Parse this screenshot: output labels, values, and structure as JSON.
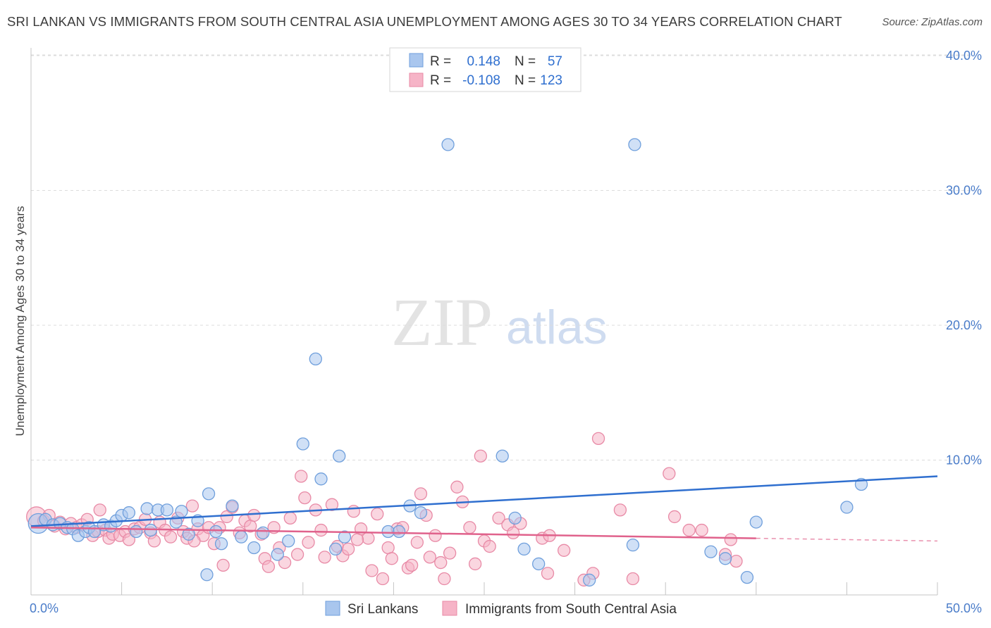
{
  "title": "SRI LANKAN VS IMMIGRANTS FROM SOUTH CENTRAL ASIA UNEMPLOYMENT AMONG AGES 30 TO 34 YEARS CORRELATION CHART",
  "source": "Source: ZipAtlas.com",
  "watermark": {
    "zip": "ZIP",
    "atlas": "atlas"
  },
  "colors": {
    "blue_fill": "#a9c6ee",
    "blue_stroke": "#6f9fdc",
    "blue_line": "#2f6fcf",
    "pink_fill": "#f6b4c7",
    "pink_stroke": "#e88aa6",
    "pink_line": "#e0628c",
    "axis_text": "#4a7cc9",
    "grid": "#dcdcdc"
  },
  "legend_top": {
    "rows": [
      {
        "r_label": "R =",
        "r_value": "0.148",
        "n_label": "N =",
        "n_value": "57",
        "series": "blue"
      },
      {
        "r_label": "R =",
        "r_value": "-0.108",
        "n_label": "N =",
        "n_value": "123",
        "series": "pink"
      }
    ]
  },
  "legend_bottom": [
    {
      "label": "Sri Lankans",
      "series": "blue"
    },
    {
      "label": "Immigrants from South Central Asia",
      "series": "pink"
    }
  ],
  "chart_data": {
    "type": "scatter",
    "title": "SRI LANKAN VS IMMIGRANTS FROM SOUTH CENTRAL ASIA UNEMPLOYMENT AMONG AGES 30 TO 34 YEARS CORRELATION CHART",
    "xlabel": "",
    "ylabel": "Unemployment Among Ages 30 to 34 years",
    "xlim": [
      0,
      50
    ],
    "ylim": [
      0,
      42
    ],
    "x_tick_labels": [
      {
        "value": 0,
        "label": "0.0%"
      },
      {
        "value": 50,
        "label": "50.0%"
      }
    ],
    "y_tick_labels": [
      {
        "value": 10,
        "label": "10.0%"
      },
      {
        "value": 20,
        "label": "20.0%"
      },
      {
        "value": 30,
        "label": "30.0%"
      },
      {
        "value": 40,
        "label": "40.0%"
      }
    ],
    "x_minor_ticks": [
      5,
      10,
      15,
      20,
      25,
      30,
      35,
      40,
      45,
      50
    ],
    "series": [
      {
        "name": "Sri Lankans",
        "color": "blue",
        "r": 0.148,
        "n": 57,
        "trend": {
          "x": [
            0,
            50
          ],
          "y": [
            5.1,
            8.8
          ],
          "dashed_from": null
        },
        "points": [
          {
            "x": 0.4,
            "y": 5.3,
            "size": "big"
          },
          {
            "x": 0.8,
            "y": 5.6
          },
          {
            "x": 1.2,
            "y": 5.2
          },
          {
            "x": 1.6,
            "y": 5.3
          },
          {
            "x": 2.0,
            "y": 5.0
          },
          {
            "x": 2.3,
            "y": 4.9
          },
          {
            "x": 2.6,
            "y": 4.4
          },
          {
            "x": 3.0,
            "y": 4.7
          },
          {
            "x": 3.2,
            "y": 5.0
          },
          {
            "x": 3.5,
            "y": 4.7
          },
          {
            "x": 4.0,
            "y": 5.2
          },
          {
            "x": 4.4,
            "y": 5.1
          },
          {
            "x": 4.7,
            "y": 5.5
          },
          {
            "x": 5.0,
            "y": 5.9
          },
          {
            "x": 5.4,
            "y": 6.1
          },
          {
            "x": 5.8,
            "y": 4.7
          },
          {
            "x": 6.4,
            "y": 6.4
          },
          {
            "x": 6.6,
            "y": 4.8
          },
          {
            "x": 7.0,
            "y": 6.3
          },
          {
            "x": 7.5,
            "y": 6.3
          },
          {
            "x": 8.0,
            "y": 5.4
          },
          {
            "x": 8.3,
            "y": 6.2
          },
          {
            "x": 8.7,
            "y": 4.5
          },
          {
            "x": 9.2,
            "y": 5.5
          },
          {
            "x": 9.7,
            "y": 1.5
          },
          {
            "x": 9.8,
            "y": 7.5
          },
          {
            "x": 10.2,
            "y": 4.7
          },
          {
            "x": 10.5,
            "y": 3.8
          },
          {
            "x": 11.1,
            "y": 6.6
          },
          {
            "x": 11.6,
            "y": 4.3
          },
          {
            "x": 12.3,
            "y": 3.5
          },
          {
            "x": 12.8,
            "y": 4.6
          },
          {
            "x": 13.6,
            "y": 3.0
          },
          {
            "x": 14.2,
            "y": 4.0
          },
          {
            "x": 15.0,
            "y": 11.2
          },
          {
            "x": 15.7,
            "y": 17.5
          },
          {
            "x": 16.0,
            "y": 8.6
          },
          {
            "x": 16.8,
            "y": 3.4
          },
          {
            "x": 17.0,
            "y": 10.3
          },
          {
            "x": 17.3,
            "y": 4.3
          },
          {
            "x": 19.7,
            "y": 4.7
          },
          {
            "x": 20.3,
            "y": 4.7
          },
          {
            "x": 20.9,
            "y": 6.6
          },
          {
            "x": 21.5,
            "y": 6.1
          },
          {
            "x": 23.0,
            "y": 33.4
          },
          {
            "x": 26.0,
            "y": 10.3
          },
          {
            "x": 26.7,
            "y": 5.7
          },
          {
            "x": 27.2,
            "y": 3.4
          },
          {
            "x": 28.0,
            "y": 2.3
          },
          {
            "x": 30.8,
            "y": 1.1
          },
          {
            "x": 33.3,
            "y": 33.4
          },
          {
            "x": 33.2,
            "y": 3.7
          },
          {
            "x": 37.5,
            "y": 3.2
          },
          {
            "x": 38.3,
            "y": 2.7
          },
          {
            "x": 39.5,
            "y": 1.3
          },
          {
            "x": 40.0,
            "y": 5.4
          },
          {
            "x": 45.0,
            "y": 6.5
          },
          {
            "x": 45.8,
            "y": 8.2
          }
        ]
      },
      {
        "name": "Immigrants from South Central Asia",
        "color": "pink",
        "r": -0.108,
        "n": 123,
        "trend": {
          "x": [
            0,
            50
          ],
          "y": [
            5.0,
            4.0
          ],
          "dashed_from": 40.0
        },
        "points": [
          {
            "x": 0.3,
            "y": 5.8,
            "size": "big"
          },
          {
            "x": 0.7,
            "y": 5.5
          },
          {
            "x": 1.0,
            "y": 5.9
          },
          {
            "x": 1.3,
            "y": 5.1
          },
          {
            "x": 1.6,
            "y": 5.4
          },
          {
            "x": 1.9,
            "y": 4.9
          },
          {
            "x": 2.2,
            "y": 5.3
          },
          {
            "x": 2.5,
            "y": 5.0
          },
          {
            "x": 2.8,
            "y": 5.2
          },
          {
            "x": 3.1,
            "y": 5.6
          },
          {
            "x": 3.4,
            "y": 4.4
          },
          {
            "x": 3.7,
            "y": 4.7
          },
          {
            "x": 3.8,
            "y": 6.3
          },
          {
            "x": 4.1,
            "y": 4.8
          },
          {
            "x": 4.3,
            "y": 4.2
          },
          {
            "x": 4.5,
            "y": 4.5
          },
          {
            "x": 4.9,
            "y": 4.4
          },
          {
            "x": 5.2,
            "y": 4.7
          },
          {
            "x": 5.4,
            "y": 4.1
          },
          {
            "x": 5.7,
            "y": 4.9
          },
          {
            "x": 6.0,
            "y": 5.0
          },
          {
            "x": 6.3,
            "y": 5.6
          },
          {
            "x": 6.6,
            "y": 4.6
          },
          {
            "x": 6.8,
            "y": 4.0
          },
          {
            "x": 7.1,
            "y": 5.4
          },
          {
            "x": 7.4,
            "y": 4.8
          },
          {
            "x": 7.7,
            "y": 4.3
          },
          {
            "x": 8.1,
            "y": 5.7
          },
          {
            "x": 8.4,
            "y": 4.7
          },
          {
            "x": 8.6,
            "y": 4.2
          },
          {
            "x": 8.9,
            "y": 6.6
          },
          {
            "x": 9.2,
            "y": 4.9
          },
          {
            "x": 9.5,
            "y": 4.4
          },
          {
            "x": 9.8,
            "y": 5.0
          },
          {
            "x": 10.1,
            "y": 3.8
          },
          {
            "x": 10.4,
            "y": 5.0
          },
          {
            "x": 10.6,
            "y": 2.2
          },
          {
            "x": 10.8,
            "y": 5.8
          },
          {
            "x": 11.1,
            "y": 6.5
          },
          {
            "x": 11.5,
            "y": 4.6
          },
          {
            "x": 11.8,
            "y": 5.5
          },
          {
            "x": 12.1,
            "y": 5.1
          },
          {
            "x": 12.3,
            "y": 5.9
          },
          {
            "x": 12.7,
            "y": 4.5
          },
          {
            "x": 12.9,
            "y": 2.7
          },
          {
            "x": 13.1,
            "y": 2.1
          },
          {
            "x": 13.4,
            "y": 5.0
          },
          {
            "x": 13.7,
            "y": 3.5
          },
          {
            "x": 14.0,
            "y": 2.4
          },
          {
            "x": 14.3,
            "y": 5.7
          },
          {
            "x": 14.7,
            "y": 3.0
          },
          {
            "x": 14.9,
            "y": 8.8
          },
          {
            "x": 15.1,
            "y": 7.2
          },
          {
            "x": 15.3,
            "y": 3.9
          },
          {
            "x": 15.7,
            "y": 6.3
          },
          {
            "x": 16.0,
            "y": 4.8
          },
          {
            "x": 16.2,
            "y": 2.8
          },
          {
            "x": 16.6,
            "y": 6.7
          },
          {
            "x": 16.9,
            "y": 3.6
          },
          {
            "x": 17.2,
            "y": 2.9
          },
          {
            "x": 17.5,
            "y": 3.4
          },
          {
            "x": 17.8,
            "y": 6.2
          },
          {
            "x": 18.2,
            "y": 4.9
          },
          {
            "x": 18.6,
            "y": 4.2
          },
          {
            "x": 18.8,
            "y": 1.8
          },
          {
            "x": 19.1,
            "y": 6.0
          },
          {
            "x": 19.4,
            "y": 1.2
          },
          {
            "x": 19.7,
            "y": 3.5
          },
          {
            "x": 19.9,
            "y": 2.7
          },
          {
            "x": 20.2,
            "y": 4.9
          },
          {
            "x": 20.5,
            "y": 5.0
          },
          {
            "x": 20.8,
            "y": 2.0
          },
          {
            "x": 21.0,
            "y": 2.2
          },
          {
            "x": 21.3,
            "y": 3.9
          },
          {
            "x": 21.5,
            "y": 7.5
          },
          {
            "x": 21.8,
            "y": 5.9
          },
          {
            "x": 22.0,
            "y": 2.8
          },
          {
            "x": 22.3,
            "y": 4.4
          },
          {
            "x": 22.6,
            "y": 2.4
          },
          {
            "x": 22.8,
            "y": 1.2
          },
          {
            "x": 23.1,
            "y": 3.1
          },
          {
            "x": 23.5,
            "y": 8.0
          },
          {
            "x": 23.8,
            "y": 6.9
          },
          {
            "x": 24.2,
            "y": 5.0
          },
          {
            "x": 24.5,
            "y": 2.3
          },
          {
            "x": 24.8,
            "y": 10.3
          },
          {
            "x": 25.0,
            "y": 4.0
          },
          {
            "x": 25.3,
            "y": 3.6
          },
          {
            "x": 25.8,
            "y": 5.7
          },
          {
            "x": 26.3,
            "y": 5.2
          },
          {
            "x": 26.6,
            "y": 4.6
          },
          {
            "x": 28.2,
            "y": 4.2
          },
          {
            "x": 28.6,
            "y": 4.4
          },
          {
            "x": 29.4,
            "y": 3.3
          },
          {
            "x": 30.5,
            "y": 1.1
          },
          {
            "x": 31.0,
            "y": 1.6
          },
          {
            "x": 31.3,
            "y": 11.6
          },
          {
            "x": 32.5,
            "y": 6.3
          },
          {
            "x": 33.2,
            "y": 1.2
          },
          {
            "x": 35.2,
            "y": 9.0
          },
          {
            "x": 35.5,
            "y": 5.8
          },
          {
            "x": 36.3,
            "y": 4.8
          },
          {
            "x": 37.0,
            "y": 4.8
          },
          {
            "x": 38.3,
            "y": 3.0
          },
          {
            "x": 38.6,
            "y": 4.1
          },
          {
            "x": 38.9,
            "y": 2.5
          },
          {
            "x": 28.5,
            "y": 1.6
          },
          {
            "x": 27.0,
            "y": 5.3
          },
          {
            "x": 18.0,
            "y": 4.1
          },
          {
            "x": 9.0,
            "y": 4.0
          }
        ]
      }
    ]
  }
}
